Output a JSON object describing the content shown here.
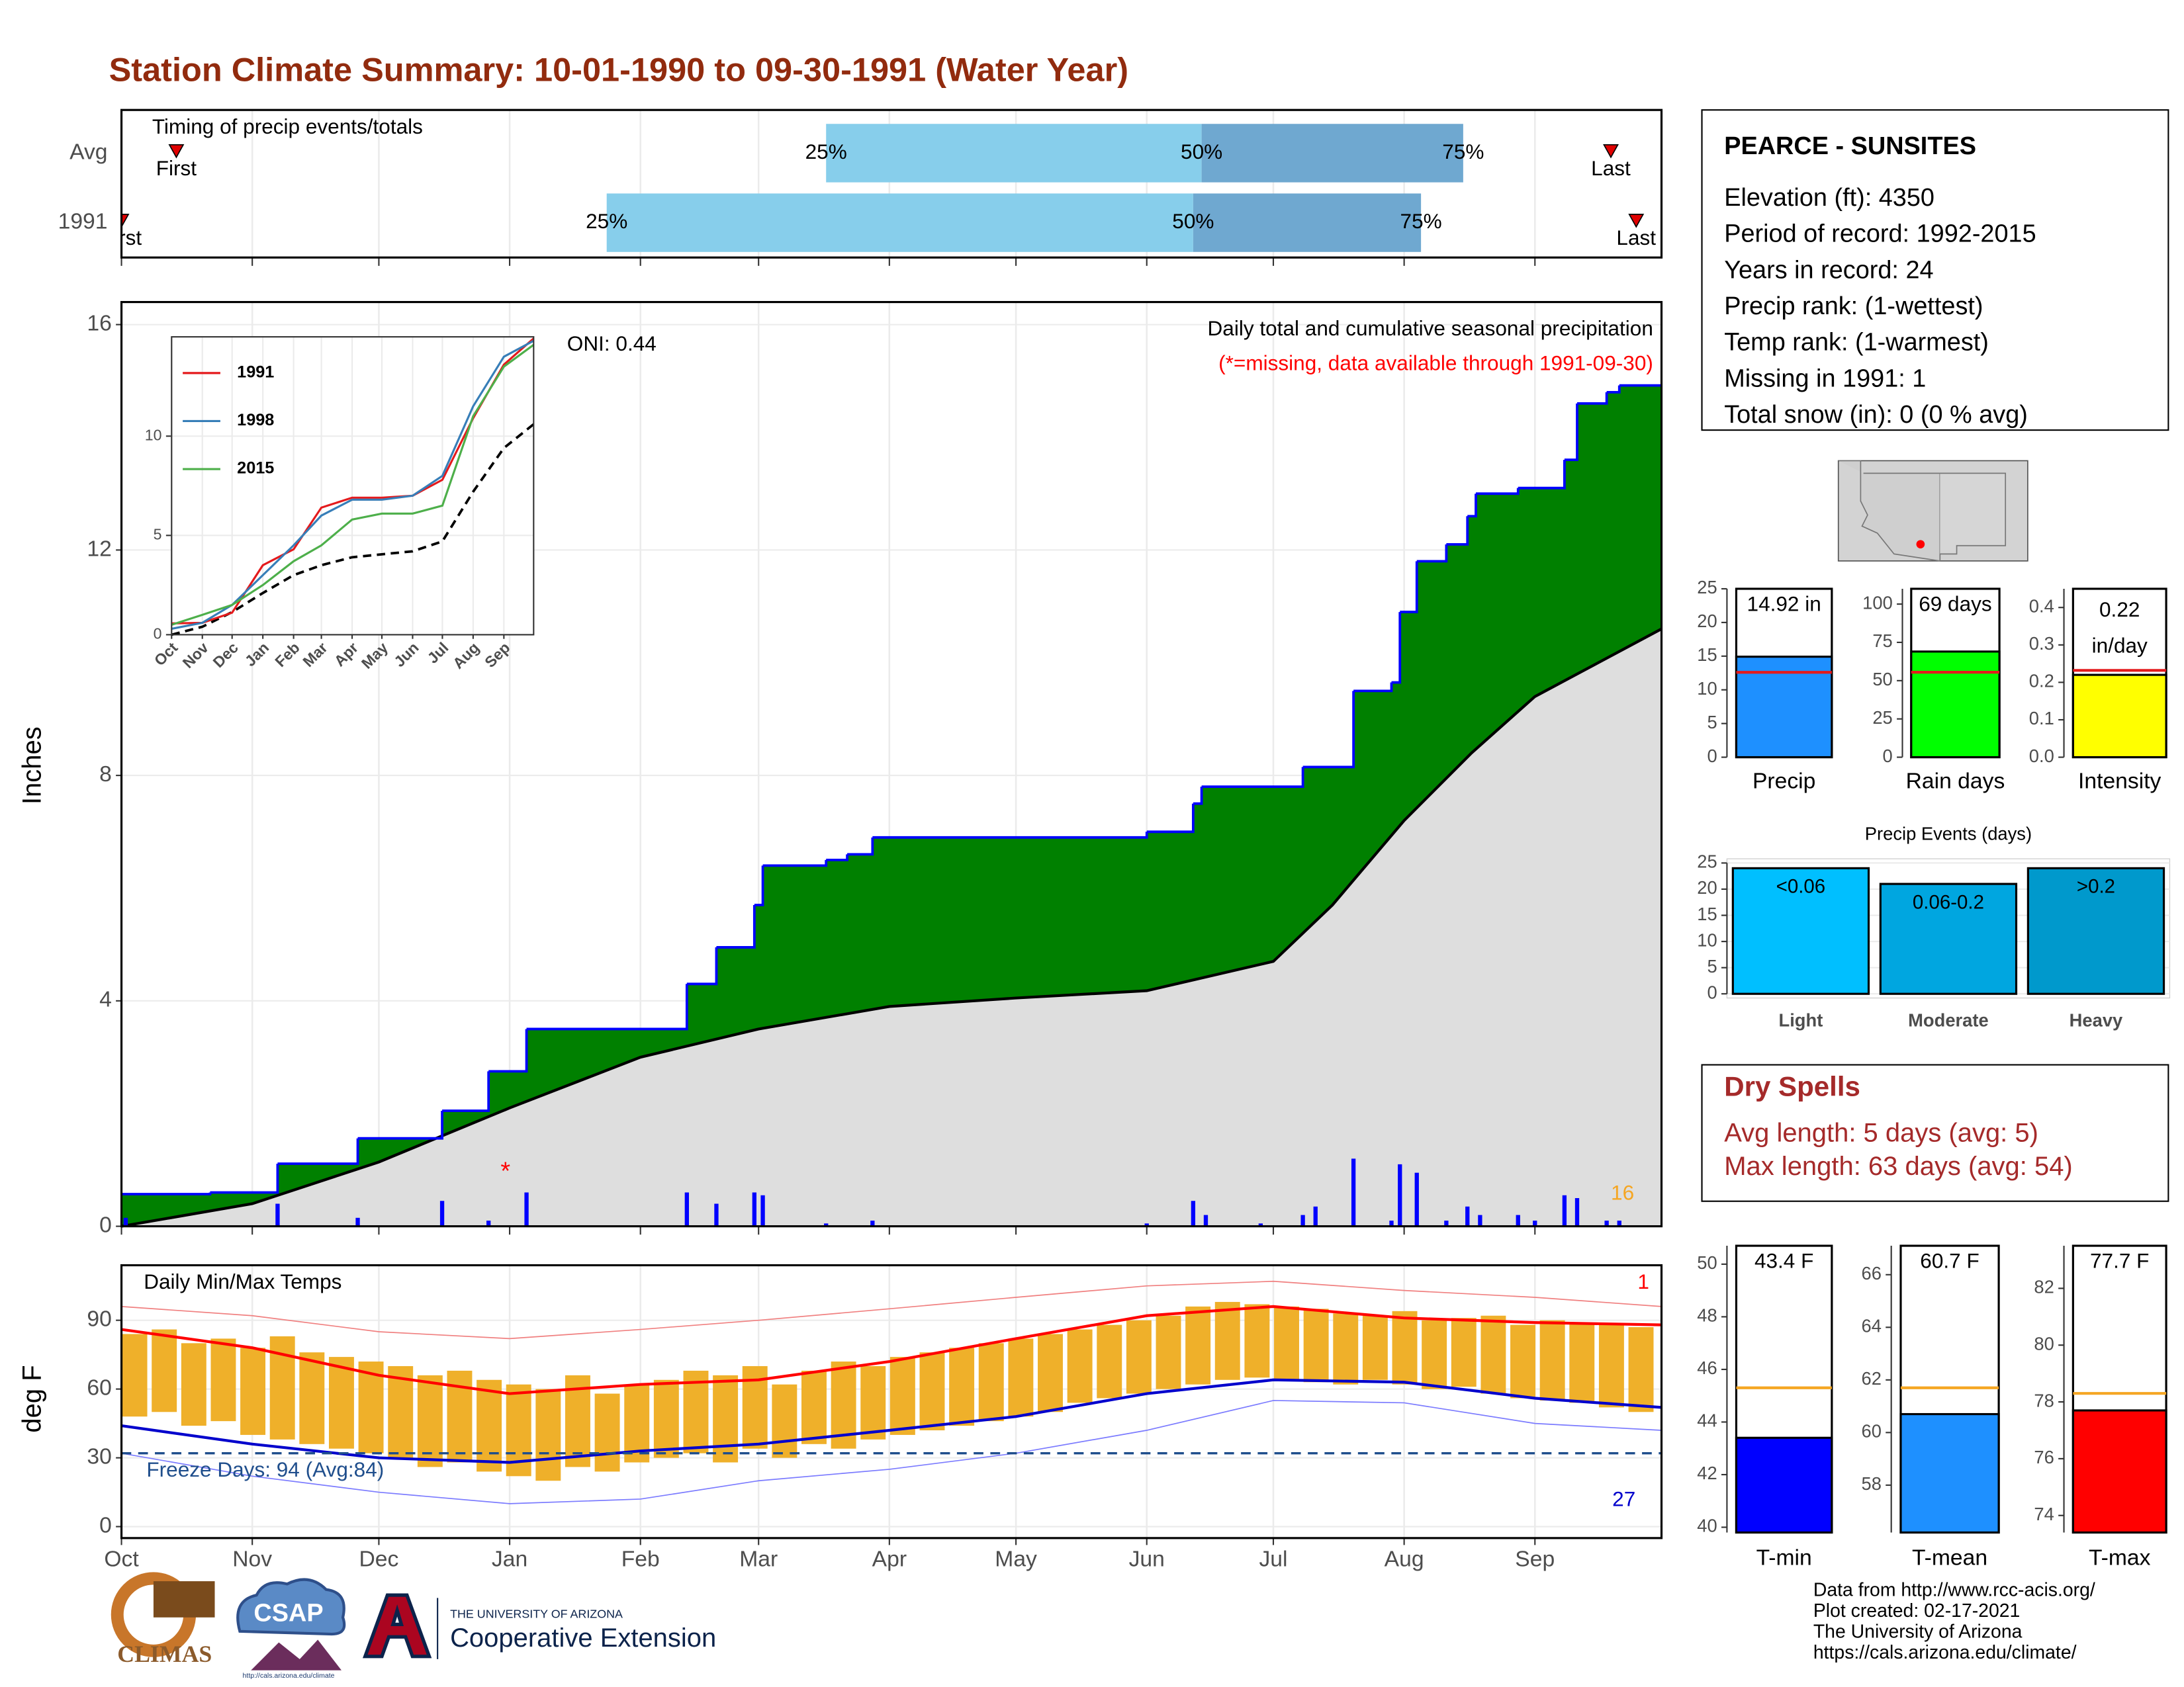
{
  "title": "Station Climate Summary: 10-01-1990 to 09-30-1991 (Water Year)",
  "info_box": {
    "station": "PEARCE - SUNSITES",
    "lines": [
      "Elevation (ft): 4350",
      "Period of record: 1992-2015",
      "Years in record: 24",
      "Precip rank:  (1-wettest)",
      "Temp rank:  (1-warmest)",
      "Missing in 1991: 1",
      "Total snow (in): 0 (0 % avg)"
    ]
  },
  "dry_spells": {
    "title": "Dry Spells",
    "lines": [
      "Avg length: 5 days (avg: 5)",
      "Max length: 63 days (avg: 54)"
    ]
  },
  "footer": [
    "Data from http://www.rcc-acis.org/",
    "Plot created: 02-17-2021",
    "The University of Arizona",
    "https://cals.arizona.edu/climate/"
  ],
  "logos": {
    "climas": "CLIMAS",
    "csap": "CSAP",
    "csap_url": "http://cals.arizona.edu/climate",
    "university": "THE UNIVERSITY OF ARIZONA",
    "extension": "Cooperative Extension"
  },
  "chart_data": [
    {
      "type": "timing",
      "title": "Timing of precip events/totals",
      "categories": [
        "Avg",
        "1991"
      ],
      "quartile_labels": [
        "25%",
        "50%",
        "75%"
      ],
      "first_label": "First",
      "last_label": "Last",
      "first": [
        13,
        0
      ],
      "q25": [
        167,
        115
      ],
      "q50": [
        256,
        254
      ],
      "q75": [
        318,
        308
      ],
      "last": [
        353,
        359
      ],
      "colors": [
        "#87ceeb",
        "#6fa8d0"
      ],
      "marker_color": "#e00000",
      "xlim": [
        0,
        365
      ],
      "xticks": [
        0,
        31,
        61,
        92,
        123,
        151,
        182,
        212,
        243,
        273,
        304,
        335
      ],
      "grid": true
    },
    {
      "type": "step_area",
      "ylabel": "Inches",
      "note": "Daily total and cumulative seasonal precipitation",
      "missing_note": "(*=missing, data available through 1991-09-30)",
      "oni": "ONI: 0.44",
      "missing_marker": {
        "label": "*",
        "x": 91,
        "y": 0.95
      },
      "event_count": 16,
      "cumulative": {
        "color": "#008000",
        "line_color": "#0000ff",
        "x": [
          0,
          21,
          37,
          56,
          76,
          87,
          96,
          134,
          141,
          150,
          152,
          167,
          172,
          178,
          243,
          254,
          256,
          280,
          292,
          301,
          303,
          307,
          314,
          319,
          321,
          331,
          342,
          345,
          352,
          355
        ],
        "values": [
          0.57,
          0.6,
          1.11,
          1.56,
          2.05,
          2.75,
          3.5,
          4.3,
          4.95,
          5.7,
          6.4,
          6.5,
          6.6,
          6.9,
          7.0,
          7.5,
          7.8,
          8.15,
          9.5,
          9.65,
          10.9,
          11.8,
          12.1,
          12.6,
          13.0,
          13.1,
          13.6,
          14.6,
          14.8,
          14.92
        ]
      },
      "average": {
        "color": "#dedede",
        "x": [
          0,
          31,
          61,
          92,
          123,
          151,
          182,
          212,
          243,
          273,
          287,
          304,
          320,
          335,
          365
        ],
        "values": [
          0,
          0.4,
          1.14,
          2.1,
          3.0,
          3.5,
          3.9,
          4.05,
          4.18,
          4.7,
          5.7,
          7.2,
          8.4,
          9.4,
          10.6
        ]
      },
      "daily": {
        "color": "#0000ff",
        "x": [
          1,
          37,
          56,
          76,
          87,
          96,
          134,
          141,
          150,
          152,
          167,
          178,
          243,
          254,
          257,
          270,
          280,
          283,
          292,
          301,
          303,
          307,
          314,
          319,
          322,
          331,
          335,
          342,
          345,
          352,
          355
        ],
        "values": [
          0.15,
          0.4,
          0.15,
          0.45,
          0.1,
          0.6,
          0.6,
          0.4,
          0.6,
          0.55,
          0.05,
          0.1,
          0.05,
          0.45,
          0.2,
          0.05,
          0.2,
          0.35,
          1.2,
          0.1,
          1.1,
          0.95,
          0.1,
          0.35,
          0.2,
          0.2,
          0.1,
          0.55,
          0.5,
          0.1,
          0.1
        ]
      },
      "xlim": [
        0,
        365
      ],
      "xticks": [
        0,
        31,
        61,
        92,
        123,
        151,
        182,
        212,
        243,
        273,
        304,
        335
      ],
      "ylim": [
        0,
        16.4
      ],
      "yticks": [
        0,
        4,
        8,
        12,
        16
      ],
      "grid": true
    },
    {
      "type": "line",
      "x": [
        0,
        31,
        61,
        92,
        123,
        151,
        182,
        212,
        243,
        273,
        304,
        335,
        365
      ],
      "series": [
        {
          "name": "1991",
          "color": "#e41a1c",
          "values": [
            0.57,
            0.6,
            1.11,
            3.5,
            4.3,
            6.4,
            6.9,
            6.9,
            7.0,
            7.8,
            10.9,
            13.6,
            14.92
          ]
        },
        {
          "name": "1998",
          "color": "#377eb8",
          "values": [
            0.3,
            0.6,
            1.5,
            3.0,
            4.5,
            6.0,
            6.8,
            6.8,
            7.0,
            8.0,
            11.5,
            14.0,
            14.8
          ]
        },
        {
          "name": "2015",
          "color": "#4daf4a",
          "values": [
            0.5,
            1.0,
            1.5,
            2.5,
            3.7,
            4.5,
            5.8,
            6.1,
            6.1,
            6.5,
            11.0,
            13.5,
            14.6
          ]
        }
      ],
      "average": [
        0,
        0.4,
        1.14,
        2.1,
        3.0,
        3.5,
        3.9,
        4.05,
        4.2,
        4.7,
        7.2,
        9.4,
        10.6
      ],
      "xlim": [
        0,
        365
      ],
      "xticks": [
        {
          "value": 0,
          "label": "Oct"
        },
        {
          "value": 31,
          "label": "Nov"
        },
        {
          "value": 61,
          "label": "Dec"
        },
        {
          "value": 92,
          "label": "Jan"
        },
        {
          "value": 123,
          "label": "Feb"
        },
        {
          "value": 151,
          "label": "Mar"
        },
        {
          "value": 182,
          "label": "Apr"
        },
        {
          "value": 212,
          "label": "May"
        },
        {
          "value": 243,
          "label": "Jun"
        },
        {
          "value": 273,
          "label": "Jul"
        },
        {
          "value": 304,
          "label": "Aug"
        },
        {
          "value": 335,
          "label": "Sep"
        }
      ],
      "ylim": [
        0,
        15
      ],
      "yticks": [
        0,
        5,
        10
      ],
      "grid": true
    },
    {
      "type": "temp_range",
      "title": "Daily Min/Max Temps",
      "ylabel": "deg F",
      "freeze_label": "Freeze Days: 94 (Avg:84)",
      "freeze": 32,
      "record_high_count": 1,
      "record_low_count": 27,
      "bar_color": "#efb02a",
      "x": [
        0,
        7,
        14,
        21,
        28,
        35,
        42,
        49,
        56,
        63,
        70,
        77,
        84,
        91,
        98,
        105,
        112,
        119,
        126,
        133,
        140,
        147,
        154,
        161,
        168,
        175,
        182,
        189,
        196,
        203,
        210,
        217,
        224,
        231,
        238,
        245,
        252,
        259,
        266,
        273,
        280,
        287,
        294,
        301,
        308,
        315,
        322,
        329,
        336,
        343,
        350,
        357
      ],
      "max": [
        84,
        86,
        80,
        82,
        78,
        83,
        76,
        74,
        72,
        70,
        66,
        68,
        64,
        62,
        60,
        66,
        58,
        62,
        64,
        68,
        66,
        70,
        62,
        68,
        72,
        70,
        74,
        76,
        78,
        80,
        82,
        84,
        86,
        88,
        90,
        92,
        96,
        98,
        97,
        96,
        95,
        93,
        92,
        94,
        90,
        91,
        92,
        88,
        90,
        89,
        88,
        87
      ],
      "min": [
        48,
        50,
        44,
        46,
        40,
        38,
        36,
        34,
        32,
        30,
        26,
        28,
        24,
        22,
        20,
        26,
        24,
        28,
        30,
        32,
        28,
        34,
        30,
        36,
        34,
        38,
        40,
        42,
        44,
        46,
        48,
        50,
        54,
        56,
        58,
        60,
        62,
        64,
        65,
        64,
        63,
        62,
        64,
        62,
        60,
        61,
        58,
        56,
        55,
        54,
        52,
        50
      ],
      "lines_x": [
        0,
        31,
        61,
        92,
        123,
        151,
        182,
        212,
        243,
        273,
        304,
        335,
        365
      ],
      "avg_max": [
        86,
        78,
        66,
        58,
        62,
        64,
        72,
        82,
        92,
        96,
        91,
        89,
        88
      ],
      "avg_min": [
        44,
        36,
        30,
        28,
        33,
        36,
        42,
        48,
        58,
        64,
        63,
        56,
        52
      ],
      "record_max": [
        96,
        92,
        85,
        82,
        86,
        90,
        95,
        100,
        105,
        107,
        103,
        100,
        96
      ],
      "record_min": [
        32,
        22,
        15,
        10,
        12,
        20,
        25,
        32,
        42,
        55,
        54,
        45,
        42
      ],
      "xlim": [
        0,
        365
      ],
      "xticks": [
        {
          "value": 0,
          "label": "Oct"
        },
        {
          "value": 31,
          "label": "Nov"
        },
        {
          "value": 61,
          "label": "Dec"
        },
        {
          "value": 92,
          "label": "Jan"
        },
        {
          "value": 123,
          "label": "Feb"
        },
        {
          "value": 151,
          "label": "Mar"
        },
        {
          "value": 182,
          "label": "Apr"
        },
        {
          "value": 212,
          "label": "May"
        },
        {
          "value": 243,
          "label": "Jun"
        },
        {
          "value": 273,
          "label": "Jul"
        },
        {
          "value": 304,
          "label": "Aug"
        },
        {
          "value": 335,
          "label": "Sep"
        }
      ],
      "ylim": [
        -5,
        114
      ],
      "yticks": [
        0,
        30,
        60,
        90
      ],
      "grid": true
    },
    {
      "type": "bar",
      "categories": [
        "Precip"
      ],
      "values": [
        14.92
      ],
      "value_labels": [
        "14.92 in"
      ],
      "average": [
        12.6
      ],
      "color": "#1e90ff",
      "average_color": "#e41a1c",
      "ylim": [
        0,
        25
      ],
      "yticks": [
        0,
        5,
        10,
        15,
        20,
        25
      ],
      "grid": false
    },
    {
      "type": "bar",
      "categories": [
        "Rain days"
      ],
      "values": [
        69
      ],
      "value_labels": [
        "69 days"
      ],
      "average": [
        55.5
      ],
      "color": "#00ff00",
      "average_color": "#e41a1c",
      "ylim": [
        0,
        110
      ],
      "yticks": [
        0,
        25,
        50,
        75,
        100
      ],
      "grid": false
    },
    {
      "type": "bar",
      "categories": [
        "Intensity"
      ],
      "values": [
        0.22
      ],
      "value_labels": [
        "0.22"
      ],
      "unit": "in/day",
      "average": [
        0.232
      ],
      "color": "#ffff00",
      "average_color": "#e41a1c",
      "ylim": [
        0,
        0.45
      ],
      "yticks": [
        {
          "value": 0,
          "label": "0.0"
        },
        0.1,
        0.2,
        0.3,
        0.4
      ],
      "grid": false
    },
    {
      "type": "bar",
      "title": "Precip Events (days)",
      "categories": [
        "Light",
        "Moderate",
        "Heavy"
      ],
      "values": [
        24,
        21,
        24
      ],
      "ranges": [
        "<0.06",
        "0.06-0.2",
        ">0.2"
      ],
      "colors": [
        "#00bfff",
        "#00a6e0",
        "#0099cc"
      ],
      "ylim": [
        0,
        25
      ],
      "yticks": [
        0,
        5,
        10,
        15,
        20,
        25
      ],
      "grid": true
    },
    {
      "type": "bar",
      "categories": [
        "T-min"
      ],
      "values": [
        43.4
      ],
      "value_labels": [
        "43.4 F"
      ],
      "average": [
        45.3
      ],
      "color": "#0000ff",
      "average_color": "#f5a623",
      "ylim": [
        39.8,
        50.7
      ],
      "yticks": [
        40,
        42,
        44,
        46,
        48,
        50
      ],
      "grid": false
    },
    {
      "type": "bar",
      "categories": [
        "T-mean"
      ],
      "values": [
        60.7
      ],
      "value_labels": [
        "60.7 F"
      ],
      "average": [
        61.7
      ],
      "color": "#1e90ff",
      "average_color": "#f5a623",
      "ylim": [
        56.2,
        67.1
      ],
      "yticks": [
        58,
        60,
        62,
        64,
        66
      ],
      "grid": false
    },
    {
      "type": "bar",
      "categories": [
        "T-max"
      ],
      "values": [
        77.7
      ],
      "value_labels": [
        "77.7 F"
      ],
      "average": [
        78.3
      ],
      "color": "#ff0000",
      "average_color": "#f5a623",
      "ylim": [
        73.4,
        83.5
      ],
      "yticks": [
        74,
        76,
        78,
        80,
        82
      ],
      "grid": false
    }
  ]
}
